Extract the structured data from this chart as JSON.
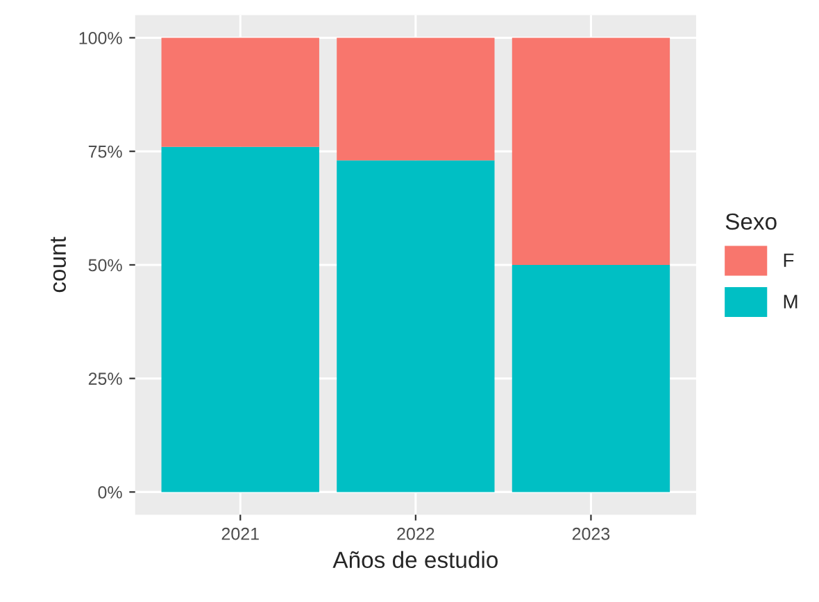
{
  "chart_data": {
    "type": "bar",
    "xlabel": "Años de estudio",
    "ylabel": "count",
    "legend_title": "Sexo",
    "categories": [
      "2021",
      "2022",
      "2023"
    ],
    "stacked": true,
    "series": [
      {
        "name": "M",
        "color": "#00bfc4",
        "values": [
          76,
          73,
          50
        ]
      },
      {
        "name": "F",
        "color": "#f8766d",
        "values": [
          24,
          27,
          50
        ]
      }
    ],
    "ylim": [
      -5,
      105
    ],
    "yticks": [
      {
        "value": 0,
        "label": "0%"
      },
      {
        "value": 25,
        "label": "25%"
      },
      {
        "value": 50,
        "label": "50%"
      },
      {
        "value": 75,
        "label": "75%"
      },
      {
        "value": 100,
        "label": "100%"
      }
    ],
    "grid": true,
    "legend": "right"
  }
}
